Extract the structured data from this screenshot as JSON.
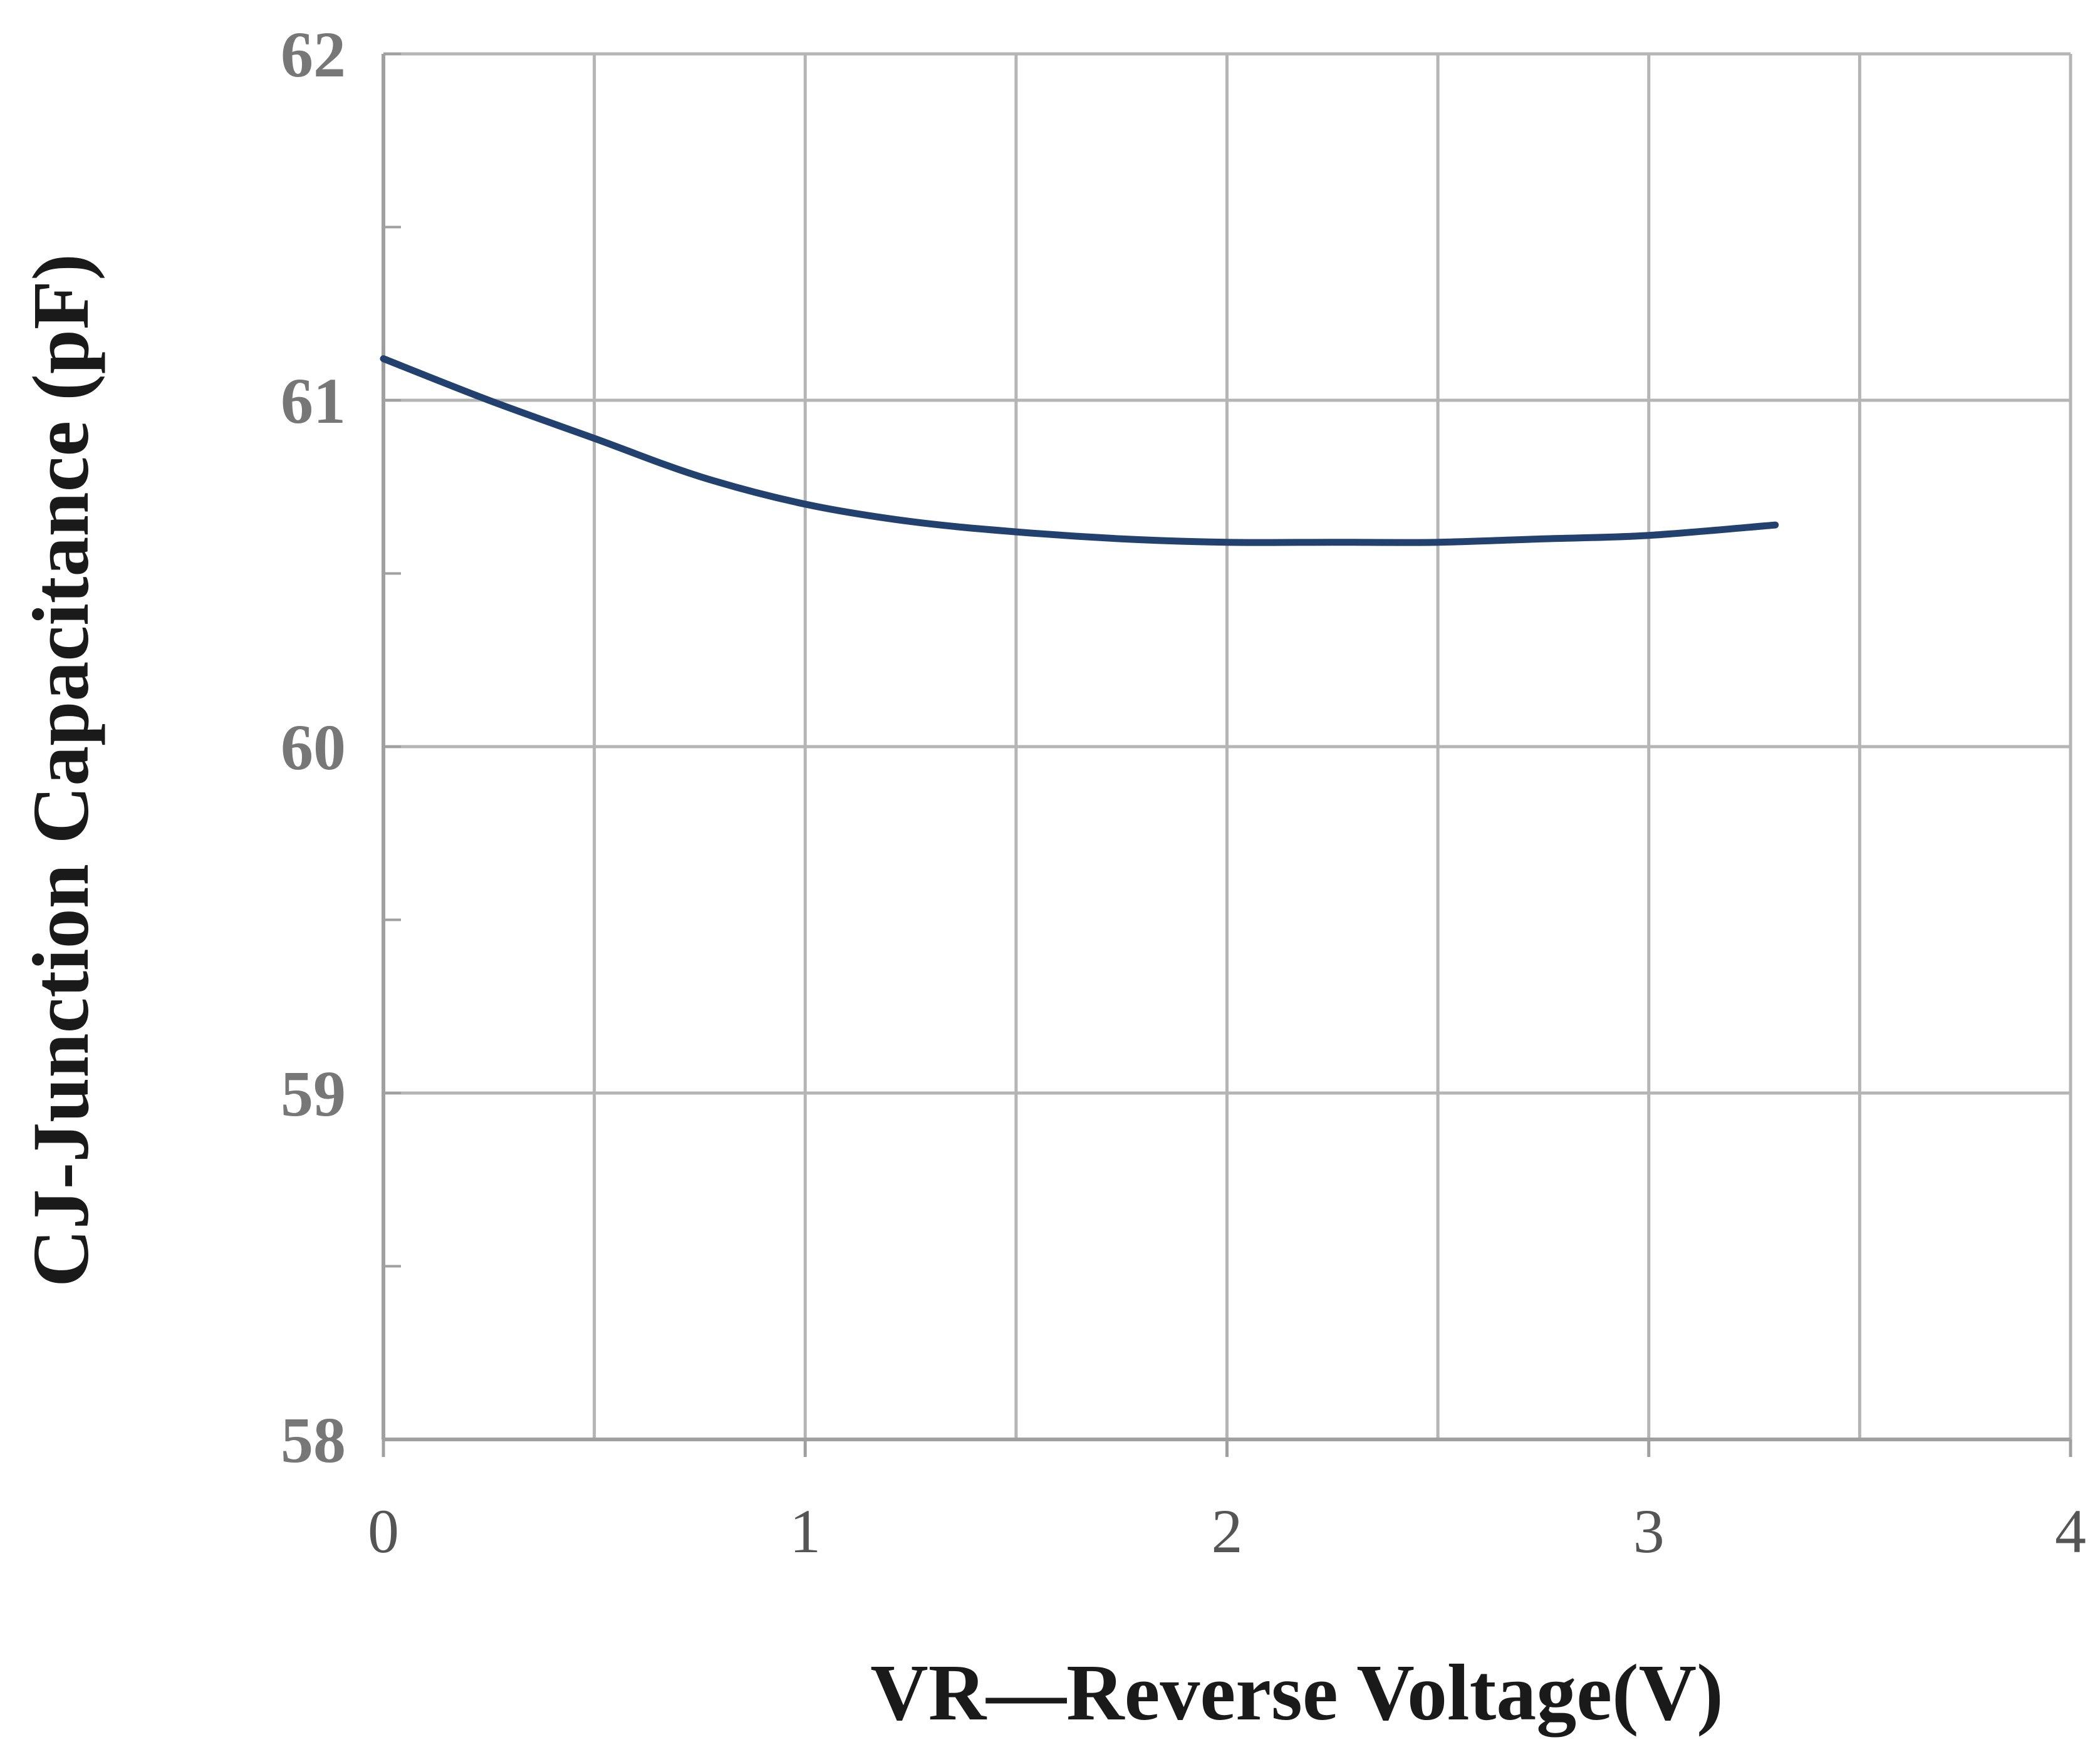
{
  "chart_data": {
    "type": "line",
    "title": "",
    "xlabel": "VR—Reverse Voltage(V)",
    "ylabel": "CJ-Junction Capacitance (pF)",
    "xlim": [
      0,
      4
    ],
    "ylim": [
      58,
      62
    ],
    "x_ticks": [
      0,
      1,
      2,
      3,
      4
    ],
    "y_ticks": [
      58,
      59,
      60,
      61,
      62
    ],
    "x_minor_step": 0.5,
    "y_minor_step": 0.5,
    "grid": true,
    "series": [
      {
        "color": "#23416e",
        "x": [
          0,
          0.25,
          0.5,
          0.75,
          1.0,
          1.25,
          1.5,
          1.75,
          2.0,
          2.25,
          2.5,
          2.75,
          3.0,
          3.3
        ],
        "y": [
          61.12,
          61.0,
          60.89,
          60.78,
          60.7,
          60.65,
          60.62,
          60.6,
          60.59,
          60.59,
          60.59,
          60.6,
          60.61,
          60.64
        ]
      }
    ],
    "colors": {
      "grid": "#b5b5b5",
      "axis": "#a0a0a0",
      "line": "#23416e"
    }
  }
}
